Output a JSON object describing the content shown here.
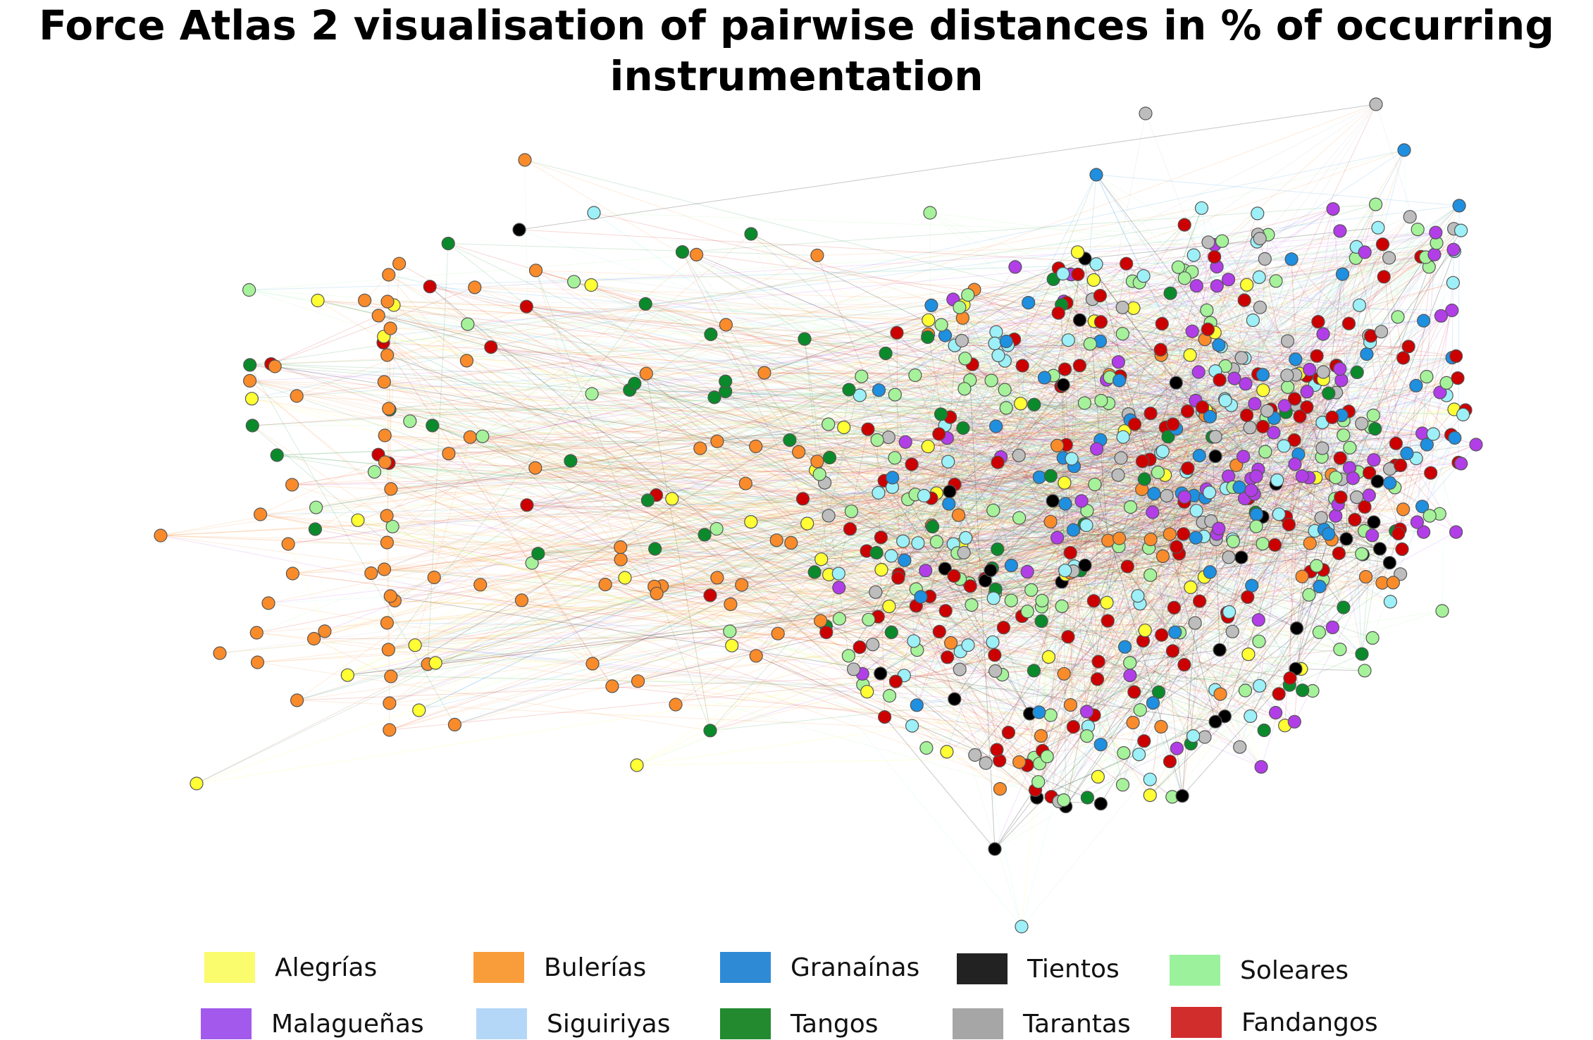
{
  "title": {
    "line1": "Force Atlas 2 visualisation of pairwise distances in % of occurring",
    "line2": "instrumentation"
  },
  "legend": [
    {
      "key": "alegrias",
      "label": "Alegrías",
      "color": "#fbfb6e"
    },
    {
      "key": "bulerias",
      "label": "Bulerías",
      "color": "#f99d3a"
    },
    {
      "key": "granainas",
      "label": "Granaínas",
      "color": "#2f8ad6"
    },
    {
      "key": "tientos",
      "label": "Tientos",
      "color": "#222222"
    },
    {
      "key": "soleares",
      "label": "Soleares",
      "color": "#9cf29c"
    },
    {
      "key": "malaguenas",
      "label": "Malagueñas",
      "color": "#a259ec"
    },
    {
      "key": "siguiriyas",
      "label": "Siguiriyas",
      "color": "#b4d7f7"
    },
    {
      "key": "tangos",
      "label": "Tangos",
      "color": "#238a2f"
    },
    {
      "key": "tarantas",
      "label": "Tarantas",
      "color": "#a6a6a6"
    },
    {
      "key": "fandangos",
      "label": "Fandangos",
      "color": "#d12d2d"
    }
  ],
  "node_colors": {
    "alegrias": "#ffff33",
    "bulerias": "#f98b2b",
    "granainas": "#1f8fe0",
    "tientos": "#000000",
    "soleares": "#a6f29a",
    "malaguenas": "#b23ee8",
    "siguiriyas": "#9df0f7",
    "tangos": "#0b8a2b",
    "tarantas": "#bdbdbd",
    "fandangos": "#cc0000"
  }
}
